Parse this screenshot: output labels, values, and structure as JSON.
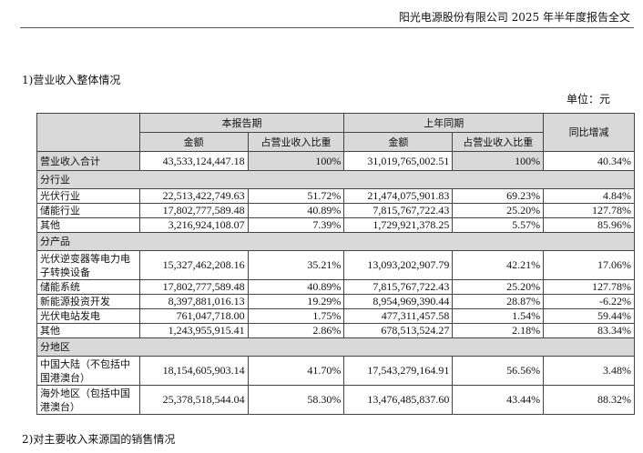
{
  "header": {
    "title": "阳光电源股份有限公司 2025 年半年度报告全文"
  },
  "section1": "1)营业收入整体情况",
  "unit": "单位：元",
  "table": {
    "h_current": "本报告期",
    "h_prior": "上年同期",
    "h_yoy": "同比增减",
    "h_amount": "金额",
    "h_ratio": "占营业收入比重",
    "total": {
      "label": "营业收入合计",
      "a": "43,533,124,447.18",
      "b": "100%",
      "c": "31,019,765,002.51",
      "d": "100%",
      "e": "40.34%"
    },
    "groups": [
      {
        "title": "分行业",
        "rows": [
          {
            "label": "光伏行业",
            "a": "22,513,422,749.63",
            "b": "51.72%",
            "c": "21,474,075,901.83",
            "d": "69.23%",
            "e": "4.84%"
          },
          {
            "label": "储能行业",
            "a": "17,802,777,589.48",
            "b": "40.89%",
            "c": "7,815,767,722.43",
            "d": "25.20%",
            "e": "127.78%"
          },
          {
            "label": "其他",
            "a": "3,216,924,108.07",
            "b": "7.39%",
            "c": "1,729,921,378.25",
            "d": "5.57%",
            "e": "85.96%"
          }
        ]
      },
      {
        "title": "分产品",
        "rows": [
          {
            "label": "光伏逆变器等电力电子转换设备",
            "a": "15,327,462,208.16",
            "b": "35.21%",
            "c": "13,093,202,907.79",
            "d": "42.21%",
            "e": "17.06%",
            "tall": true
          },
          {
            "label": "储能系统",
            "a": "17,802,777,589.48",
            "b": "40.89%",
            "c": "7,815,767,722.43",
            "d": "25.20%",
            "e": "127.78%"
          },
          {
            "label": "新能源投资开发",
            "a": "8,397,881,016.13",
            "b": "19.29%",
            "c": "8,954,969,390.44",
            "d": "28.87%",
            "e": "-6.22%"
          },
          {
            "label": "光伏电站发电",
            "a": "761,047,718.00",
            "b": "1.75%",
            "c": "477,311,457.58",
            "d": "1.54%",
            "e": "59.44%"
          },
          {
            "label": "其他",
            "a": "1,243,955,915.41",
            "b": "2.86%",
            "c": "678,513,524.27",
            "d": "2.18%",
            "e": "83.34%"
          }
        ]
      },
      {
        "title": "分地区",
        "rows": [
          {
            "label": "中国大陆（不包括中国港澳台）",
            "a": "18,154,605,903.14",
            "b": "41.70%",
            "c": "17,543,279,164.91",
            "d": "56.56%",
            "e": "3.48%",
            "tall": true
          },
          {
            "label": "海外地区（包括中国港澳台）",
            "a": "25,378,518,544.04",
            "b": "58.30%",
            "c": "13,476,485,837.60",
            "d": "43.44%",
            "e": "88.32%",
            "tall": true
          }
        ]
      }
    ]
  },
  "section2": "2)对主要收入来源国的销售情况"
}
